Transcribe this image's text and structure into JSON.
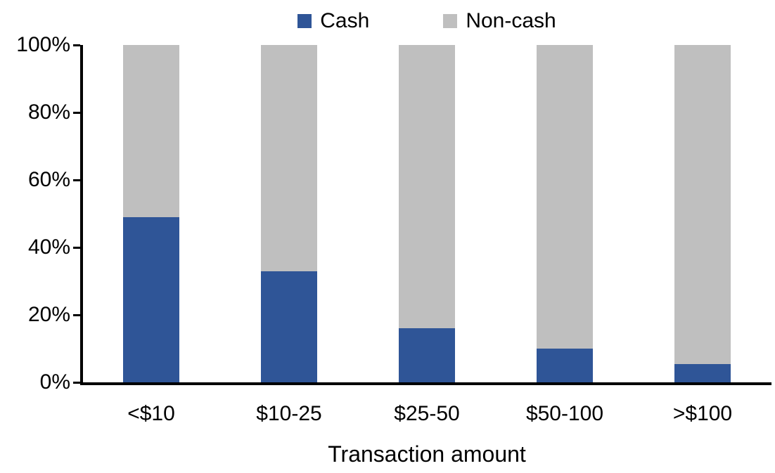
{
  "chart_data": {
    "type": "bar",
    "stacked": true,
    "percent_stacked": true,
    "title": "",
    "xlabel": "Transaction amount",
    "ylabel": "",
    "categories": [
      "<$10",
      "$10-25",
      "$25-50",
      "$50-100",
      ">$100"
    ],
    "series": [
      {
        "name": "Cash",
        "color": "#2F5597",
        "values": [
          49,
          33,
          16,
          10,
          5.5
        ]
      },
      {
        "name": "Non-cash",
        "color": "#BFBFBF",
        "values": [
          51,
          67,
          84,
          90,
          94.5
        ]
      }
    ],
    "ylim": [
      0,
      100
    ],
    "ytick_step": 20,
    "ytick_labels": [
      "0%",
      "20%",
      "40%",
      "60%",
      "80%",
      "100%"
    ],
    "grid": false,
    "legend_position": "top-center",
    "axis_color": "#000000",
    "background_color": "#FFFFFF"
  }
}
